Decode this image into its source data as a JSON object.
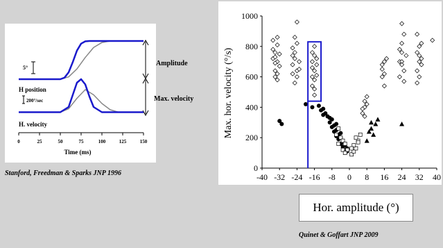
{
  "left_panel": {
    "labels": {
      "scale_deg": "5°",
      "h_position": "H position",
      "scale_vel": "200°/sec",
      "h_velocity": "H. velocity",
      "amplitude": "Amplitude",
      "max_velocity": "Max. velocity",
      "xlabel": "Time (ms)"
    },
    "x_ticks": [
      "0",
      "25",
      "50",
      "75",
      "100",
      "125",
      "150"
    ],
    "citation": "Stanford, Freedman & Sparks JNP 1996"
  },
  "chart_data": [
    {
      "type": "line",
      "x_unit": "ms",
      "xlim": [
        0,
        150
      ],
      "x_tick_labels": [
        "0",
        "25",
        "50",
        "75",
        "100",
        "125",
        "150"
      ],
      "xlabel": "Time (ms)",
      "series": [
        {
          "color": "#1a1acc",
          "x": [
            0,
            50,
            55,
            60,
            65,
            70,
            75,
            80,
            85,
            90,
            95,
            150
          ],
          "y": [
            0,
            0,
            0.04,
            0.18,
            0.45,
            0.75,
            0.93,
            0.99,
            1,
            1,
            1,
            1
          ]
        },
        {
          "color": "#888888",
          "x": [
            0,
            50,
            60,
            70,
            80,
            90,
            100,
            110,
            150
          ],
          "y": [
            0,
            0,
            0.06,
            0.27,
            0.57,
            0.83,
            0.96,
            1,
            1
          ]
        }
      ],
      "velocity_series": [
        {
          "color": "#1a1acc",
          "x": [
            0,
            50,
            60,
            65,
            70,
            75,
            80,
            85,
            90,
            100,
            150
          ],
          "y": [
            0.05,
            0.05,
            0.2,
            0.55,
            0.9,
            1.0,
            0.85,
            0.5,
            0.2,
            0.05,
            0.05
          ]
        },
        {
          "color": "#888888",
          "x": [
            0,
            50,
            60,
            70,
            80,
            90,
            100,
            110,
            120,
            150
          ],
          "y": [
            0.05,
            0.05,
            0.15,
            0.45,
            0.7,
            0.55,
            0.3,
            0.12,
            0.05,
            0.05
          ]
        }
      ]
    },
    {
      "type": "scatter",
      "ylabel": "Max. hor. velocity  (°/s)",
      "xlabel": "Hor. amplitude (°)",
      "xlim": [
        -40,
        40
      ],
      "ylim": [
        0,
        1000
      ],
      "x_ticks": [
        -40,
        -32,
        -24,
        -16,
        -8,
        0,
        8,
        16,
        24,
        32,
        40
      ],
      "y_ticks": [
        0,
        200,
        400,
        600,
        800,
        1000
      ],
      "highlight_box": {
        "x": [
          -19,
          -13
        ],
        "y": [
          440,
          830
        ],
        "color": "#1a1acc"
      },
      "series": [
        {
          "marker": "open-diamond",
          "points": [
            [
              -34,
              760
            ],
            [
              -33,
              700
            ],
            [
              -34,
              640
            ],
            [
              -33,
              810
            ],
            [
              -35,
              720
            ],
            [
              -34,
              600
            ],
            [
              -33,
              860
            ],
            [
              -32,
              670
            ],
            [
              -35,
              780
            ],
            [
              -34,
              730
            ],
            [
              -33,
              620
            ],
            [
              -32,
              750
            ],
            [
              -34,
              690
            ],
            [
              -33,
              580
            ],
            [
              -35,
              840
            ],
            [
              -26,
              790
            ],
            [
              -25,
              720
            ],
            [
              -24,
              640
            ],
            [
              -25,
              860
            ],
            [
              -26,
              680
            ],
            [
              -24,
              600
            ],
            [
              -25,
              760
            ],
            [
              -23,
              700
            ],
            [
              -26,
              740
            ],
            [
              -24,
              820
            ],
            [
              -25,
              560
            ],
            [
              -24,
              960
            ],
            [
              -23,
              650
            ],
            [
              -26,
              620
            ],
            [
              -17,
              700
            ],
            [
              -16,
              640
            ],
            [
              -17,
              760
            ],
            [
              -16,
              580
            ],
            [
              -15,
              720
            ],
            [
              -17,
              660
            ],
            [
              -16,
              800
            ],
            [
              -15,
              610
            ],
            [
              -17,
              540
            ],
            [
              -16,
              480
            ],
            [
              -15,
              680
            ],
            [
              -16,
              740
            ],
            [
              -17,
              600
            ],
            [
              -16,
              520
            ],
            [
              7,
              440
            ],
            [
              7,
              400
            ],
            [
              8,
              470
            ],
            [
              6,
              360
            ],
            [
              7,
              340
            ],
            [
              8,
              420
            ],
            [
              6,
              390
            ],
            [
              15,
              650
            ],
            [
              16,
              700
            ],
            [
              15,
              600
            ],
            [
              17,
              720
            ],
            [
              16,
              540
            ],
            [
              15,
              680
            ],
            [
              16,
              620
            ],
            [
              23,
              700
            ],
            [
              24,
              760
            ],
            [
              25,
              640
            ],
            [
              24,
              820
            ],
            [
              23,
              600
            ],
            [
              25,
              880
            ],
            [
              24,
              700
            ],
            [
              23,
              780
            ],
            [
              25,
              570
            ],
            [
              24,
              680
            ],
            [
              26,
              740
            ],
            [
              24,
              950
            ],
            [
              31,
              760
            ],
            [
              32,
              700
            ],
            [
              31,
              640
            ],
            [
              33,
              820
            ],
            [
              32,
              600
            ],
            [
              31,
              880
            ],
            [
              32,
              740
            ],
            [
              33,
              680
            ],
            [
              31,
              560
            ],
            [
              32,
              800
            ],
            [
              33,
              720
            ],
            [
              38,
              840
            ]
          ]
        },
        {
          "marker": "filled-circle",
          "points": [
            [
              -32,
              310
            ],
            [
              -31,
              290
            ],
            [
              -20,
              420
            ],
            [
              -17,
              400
            ],
            [
              -14,
              410
            ],
            [
              -13,
              380
            ],
            [
              -12,
              390
            ],
            [
              -11,
              360
            ],
            [
              -10,
              340
            ],
            [
              -9,
              300
            ],
            [
              -8,
              320
            ],
            [
              -8,
              270
            ],
            [
              -7,
              280
            ],
            [
              -7,
              240
            ],
            [
              -6,
              250
            ],
            [
              -6,
              210
            ],
            [
              -5,
              220
            ],
            [
              -5,
              190
            ],
            [
              -4,
              200
            ],
            [
              -4,
              160
            ],
            [
              -3,
              170
            ],
            [
              -3,
              140
            ],
            [
              -2,
              150
            ],
            [
              -2,
              120
            ],
            [
              -1,
              110
            ],
            [
              -1,
              130
            ],
            [
              -12,
              350
            ],
            [
              -9,
              330
            ],
            [
              -6,
              290
            ],
            [
              -4,
              230
            ]
          ]
        },
        {
          "marker": "open-square",
          "points": [
            [
              -6,
              220
            ],
            [
              -5,
              260
            ],
            [
              -4,
              200
            ],
            [
              -3,
              180
            ],
            [
              -5,
              160
            ],
            [
              -2,
              160
            ],
            [
              -3,
              120
            ],
            [
              -1,
              120
            ],
            [
              -2,
              100
            ],
            [
              1,
              90
            ],
            [
              2,
              110
            ],
            [
              3,
              130
            ],
            [
              2,
              150
            ],
            [
              4,
              180
            ],
            [
              3,
              200
            ],
            [
              5,
              220
            ],
            [
              4,
              170
            ],
            [
              1,
              130
            ]
          ]
        },
        {
          "marker": "filled-triangle",
          "points": [
            [
              9,
              240
            ],
            [
              10,
              260
            ],
            [
              11,
              220
            ],
            [
              12,
              290
            ],
            [
              13,
              320
            ],
            [
              8,
              180
            ],
            [
              10,
              300
            ],
            [
              24,
              290
            ]
          ]
        }
      ]
    }
  ],
  "right_cite": "Quinet & Goffart JNP 2009"
}
